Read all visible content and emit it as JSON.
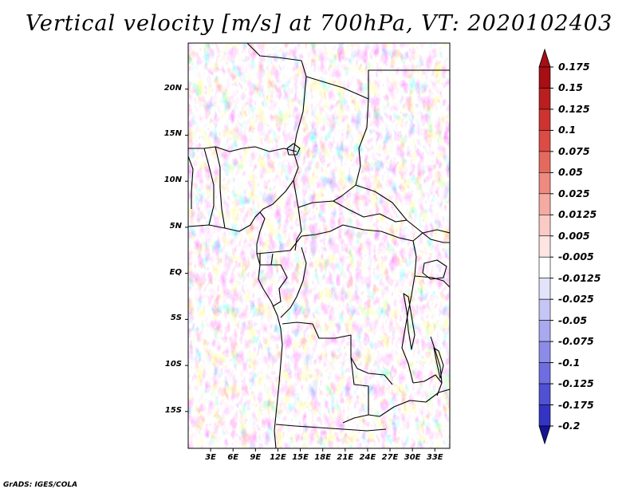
{
  "title": "Vertical velocity [m/s] at 700hPa, VT: 2020102403",
  "footer": "GrADS: IGES/COLA",
  "map": {
    "lat_range": [
      -19,
      25
    ],
    "lon_range": [
      0,
      35
    ],
    "lat_ticks": [
      {
        "value": 20,
        "label": "20N"
      },
      {
        "value": 15,
        "label": "15N"
      },
      {
        "value": 10,
        "label": "10N"
      },
      {
        "value": 5,
        "label": "5N"
      },
      {
        "value": 0,
        "label": "EQ"
      },
      {
        "value": -5,
        "label": "5S"
      },
      {
        "value": -10,
        "label": "10S"
      },
      {
        "value": -15,
        "label": "15S"
      }
    ],
    "lon_ticks": [
      {
        "value": 3,
        "label": "3E"
      },
      {
        "value": 6,
        "label": "6E"
      },
      {
        "value": 9,
        "label": "9E"
      },
      {
        "value": 12,
        "label": "12E"
      },
      {
        "value": 15,
        "label": "15E"
      },
      {
        "value": 18,
        "label": "18E"
      },
      {
        "value": 21,
        "label": "21E"
      },
      {
        "value": 24,
        "label": "24E"
      },
      {
        "value": 27,
        "label": "27E"
      },
      {
        "value": 30,
        "label": "30E"
      },
      {
        "value": 33,
        "label": "33E"
      }
    ]
  },
  "colorbar": {
    "levels": [
      {
        "label": "0.175",
        "color": "#a50f15"
      },
      {
        "label": "0.15",
        "color": "#bb1e20"
      },
      {
        "label": "0.125",
        "color": "#cd3330"
      },
      {
        "label": "0.1",
        "color": "#dc4c45"
      },
      {
        "label": "0.075",
        "color": "#e6695f"
      },
      {
        "label": "0.05",
        "color": "#ee8a80"
      },
      {
        "label": "0.025",
        "color": "#f5aaa2"
      },
      {
        "label": "0.0125",
        "color": "#facac5"
      },
      {
        "label": "0.005",
        "color": "#fde5e2"
      },
      {
        "label": "-0.005",
        "color": "#ffffff"
      },
      {
        "label": "-0.0125",
        "color": "#e3e3fb"
      },
      {
        "label": "-0.025",
        "color": "#c6c6f5"
      },
      {
        "label": "-0.05",
        "color": "#a9a9ef"
      },
      {
        "label": "-0.075",
        "color": "#8c8ce8"
      },
      {
        "label": "-0.1",
        "color": "#6e6ee0"
      },
      {
        "label": "-0.125",
        "color": "#5050d4"
      },
      {
        "label": "-0.175",
        "color": "#3434c4"
      },
      {
        "label": "-0.2",
        "color": "#1f1fb0"
      }
    ],
    "top_arrow_color": "#a50f15",
    "bottom_arrow_color": "#141496"
  }
}
